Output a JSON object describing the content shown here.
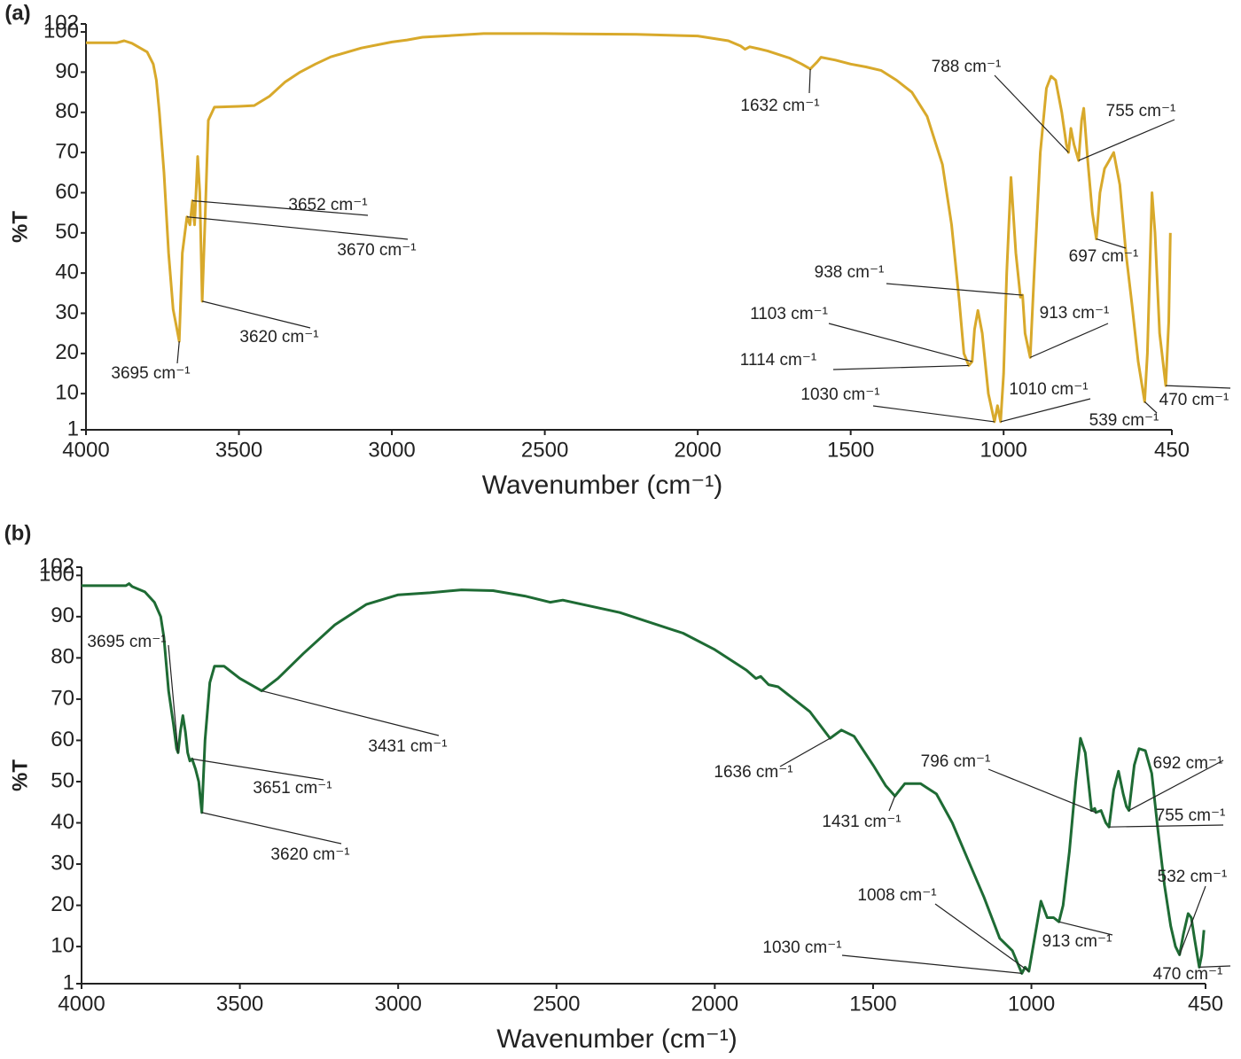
{
  "chart_data": [
    {
      "type": "line",
      "panel": "(a)",
      "xlabel": "Wavenumber (cm⁻¹)",
      "ylabel": "%T",
      "xlim": [
        4000,
        450
      ],
      "ylim": [
        1,
        102
      ],
      "xticks": [
        4000,
        3500,
        3000,
        2500,
        2000,
        1500,
        1000,
        450
      ],
      "yticks": [
        1,
        10,
        20,
        30,
        40,
        50,
        60,
        70,
        80,
        90,
        100,
        102
      ],
      "x": [
        4000,
        3900,
        3875,
        3850,
        3800,
        3780,
        3770,
        3760,
        3745,
        3730,
        3715,
        3705,
        3695,
        3685,
        3670,
        3660,
        3652,
        3645,
        3635,
        3628,
        3620,
        3610,
        3600,
        3580,
        3500,
        3450,
        3400,
        3350,
        3300,
        3250,
        3200,
        3100,
        3000,
        2950,
        2900,
        2700,
        2500,
        2200,
        2000,
        1900,
        1860,
        1845,
        1830,
        1800,
        1772,
        1700,
        1660,
        1632,
        1610,
        1597,
        1550,
        1500,
        1450,
        1400,
        1350,
        1300,
        1250,
        1200,
        1170,
        1145,
        1130,
        1114,
        1103,
        1095,
        1084,
        1070,
        1050,
        1030,
        1020,
        1010,
        1000,
        990,
        976,
        960,
        945,
        938,
        930,
        913,
        900,
        880,
        860,
        845,
        830,
        810,
        795,
        788,
        780,
        770,
        755,
        745,
        738,
        725,
        710,
        697,
        685,
        670,
        655,
        640,
        620,
        600,
        580,
        560,
        539,
        530,
        515,
        505,
        490,
        470,
        460,
        455
      ],
      "series": [
        {
          "color": "#d8a92b",
          "values": [
            97.3,
            97.3,
            97.8,
            97.2,
            95,
            92,
            88,
            80,
            65,
            45,
            31,
            27,
            23,
            45,
            54,
            52,
            58,
            52,
            69,
            60,
            33,
            55,
            78,
            81.3,
            81.5,
            81.7,
            84,
            87.5,
            90,
            92,
            93.8,
            96,
            97.5,
            98,
            98.7,
            99.6,
            99.6,
            99.4,
            99,
            97.8,
            96.5,
            95.7,
            96.3,
            95.8,
            95.3,
            93.5,
            92,
            90.8,
            92.5,
            93.7,
            93,
            92,
            91.3,
            90.4,
            88,
            85,
            79,
            67,
            52,
            33,
            20,
            17,
            18,
            26,
            30.7,
            25,
            10,
            3,
            7,
            3,
            15,
            40,
            63.8,
            45,
            34,
            34.5,
            25,
            19,
            40,
            70,
            86,
            89,
            88,
            80,
            72,
            70,
            76,
            72,
            68,
            78,
            81,
            68,
            55,
            48.5,
            60,
            66,
            68,
            70,
            62,
            45,
            32,
            18,
            8,
            20,
            60,
            50,
            25,
            12,
            28,
            50
          ]
        }
      ],
      "annotations": [
        {
          "text": "3695 cm⁻¹",
          "x": 3695
        },
        {
          "text": "3620 cm⁻¹",
          "x": 3620
        },
        {
          "text": "3652 cm⁻¹",
          "x": 3652
        },
        {
          "text": "3670 cm⁻¹",
          "x": 3670
        },
        {
          "text": "1632 cm⁻¹",
          "x": 1632
        },
        {
          "text": "788 cm⁻¹",
          "x": 788
        },
        {
          "text": "755 cm⁻¹",
          "x": 755
        },
        {
          "text": "697 cm⁻¹",
          "x": 697
        },
        {
          "text": "938 cm⁻¹",
          "x": 938
        },
        {
          "text": "913 cm⁻¹",
          "x": 913
        },
        {
          "text": "1103 cm⁻¹",
          "x": 1103
        },
        {
          "text": "1114 cm⁻¹",
          "x": 1114
        },
        {
          "text": "1030 cm⁻¹",
          "x": 1030
        },
        {
          "text": "1010 cm⁻¹",
          "x": 1010
        },
        {
          "text": "539 cm⁻¹",
          "x": 539
        },
        {
          "text": "470 cm⁻¹",
          "x": 470
        }
      ]
    },
    {
      "type": "line",
      "panel": "(b)",
      "xlabel": "Wavenumber (cm⁻¹)",
      "ylabel": "%T",
      "xlim": [
        4000,
        450
      ],
      "ylim": [
        1,
        102
      ],
      "xticks": [
        4000,
        3500,
        3000,
        2500,
        2000,
        1500,
        1000,
        450
      ],
      "yticks": [
        1,
        10,
        20,
        30,
        40,
        50,
        60,
        70,
        80,
        90,
        100,
        102
      ],
      "x": [
        4000,
        3900,
        3860,
        3850,
        3840,
        3800,
        3770,
        3750,
        3740,
        3725,
        3710,
        3700,
        3695,
        3688,
        3680,
        3672,
        3665,
        3658,
        3651,
        3640,
        3630,
        3620,
        3610,
        3595,
        3580,
        3550,
        3500,
        3431,
        3380,
        3300,
        3200,
        3100,
        3000,
        2900,
        2800,
        2700,
        2600,
        2520,
        2480,
        2300,
        2100,
        2000,
        1900,
        1870,
        1855,
        1830,
        1800,
        1700,
        1636,
        1600,
        1560,
        1500,
        1460,
        1431,
        1400,
        1350,
        1300,
        1250,
        1200,
        1150,
        1100,
        1060,
        1030,
        1020,
        1008,
        990,
        970,
        950,
        930,
        913,
        900,
        880,
        860,
        845,
        830,
        810,
        800,
        796,
        780,
        765,
        755,
        740,
        725,
        710,
        700,
        692,
        675,
        660,
        640,
        620,
        600,
        580,
        560,
        545,
        532,
        520,
        505,
        495,
        485,
        470,
        462,
        455
      ],
      "series": [
        {
          "color": "#1e6b34",
          "values": [
            97.5,
            97.5,
            97.5,
            98,
            97.3,
            96,
            93.5,
            90,
            85,
            72,
            64,
            58,
            57,
            62,
            66,
            62,
            57,
            55,
            55.5,
            53,
            50,
            42.5,
            60,
            74,
            78,
            78,
            75,
            72,
            75,
            81,
            88,
            93,
            95.3,
            95.8,
            96.5,
            96.3,
            95,
            93.5,
            94,
            91,
            86,
            82,
            77,
            75,
            75.5,
            73.5,
            73,
            67,
            60.5,
            62.5,
            61,
            54,
            49,
            46.5,
            49.5,
            49.5,
            47,
            40,
            31,
            22,
            12,
            9,
            3.5,
            5,
            4,
            12,
            21,
            17,
            17,
            16,
            20,
            33,
            50,
            60.5,
            57,
            43,
            43.5,
            42.5,
            43,
            40,
            39,
            48,
            52.5,
            47,
            44,
            43,
            54,
            58,
            57.5,
            52,
            38,
            25,
            15,
            10,
            8,
            13,
            18,
            17,
            12,
            5,
            8,
            14
          ]
        }
      ],
      "annotations": [
        {
          "text": "3695 cm⁻¹",
          "x": 3695
        },
        {
          "text": "3651 cm⁻¹",
          "x": 3651
        },
        {
          "text": "3620 cm⁻¹",
          "x": 3620
        },
        {
          "text": "3431 cm⁻¹",
          "x": 3431
        },
        {
          "text": "1636 cm⁻¹",
          "x": 1636
        },
        {
          "text": "1431 cm⁻¹",
          "x": 1431
        },
        {
          "text": "796 cm⁻¹",
          "x": 796
        },
        {
          "text": "692 cm⁻¹",
          "x": 692
        },
        {
          "text": "755 cm⁻¹",
          "x": 755
        },
        {
          "text": "532 cm⁻¹",
          "x": 532
        },
        {
          "text": "1008 cm⁻¹",
          "x": 1008
        },
        {
          "text": "913 cm⁻¹",
          "x": 913
        },
        {
          "text": "1030 cm⁻¹",
          "x": 1030
        },
        {
          "text": "470 cm⁻¹",
          "x": 470
        }
      ]
    }
  ]
}
